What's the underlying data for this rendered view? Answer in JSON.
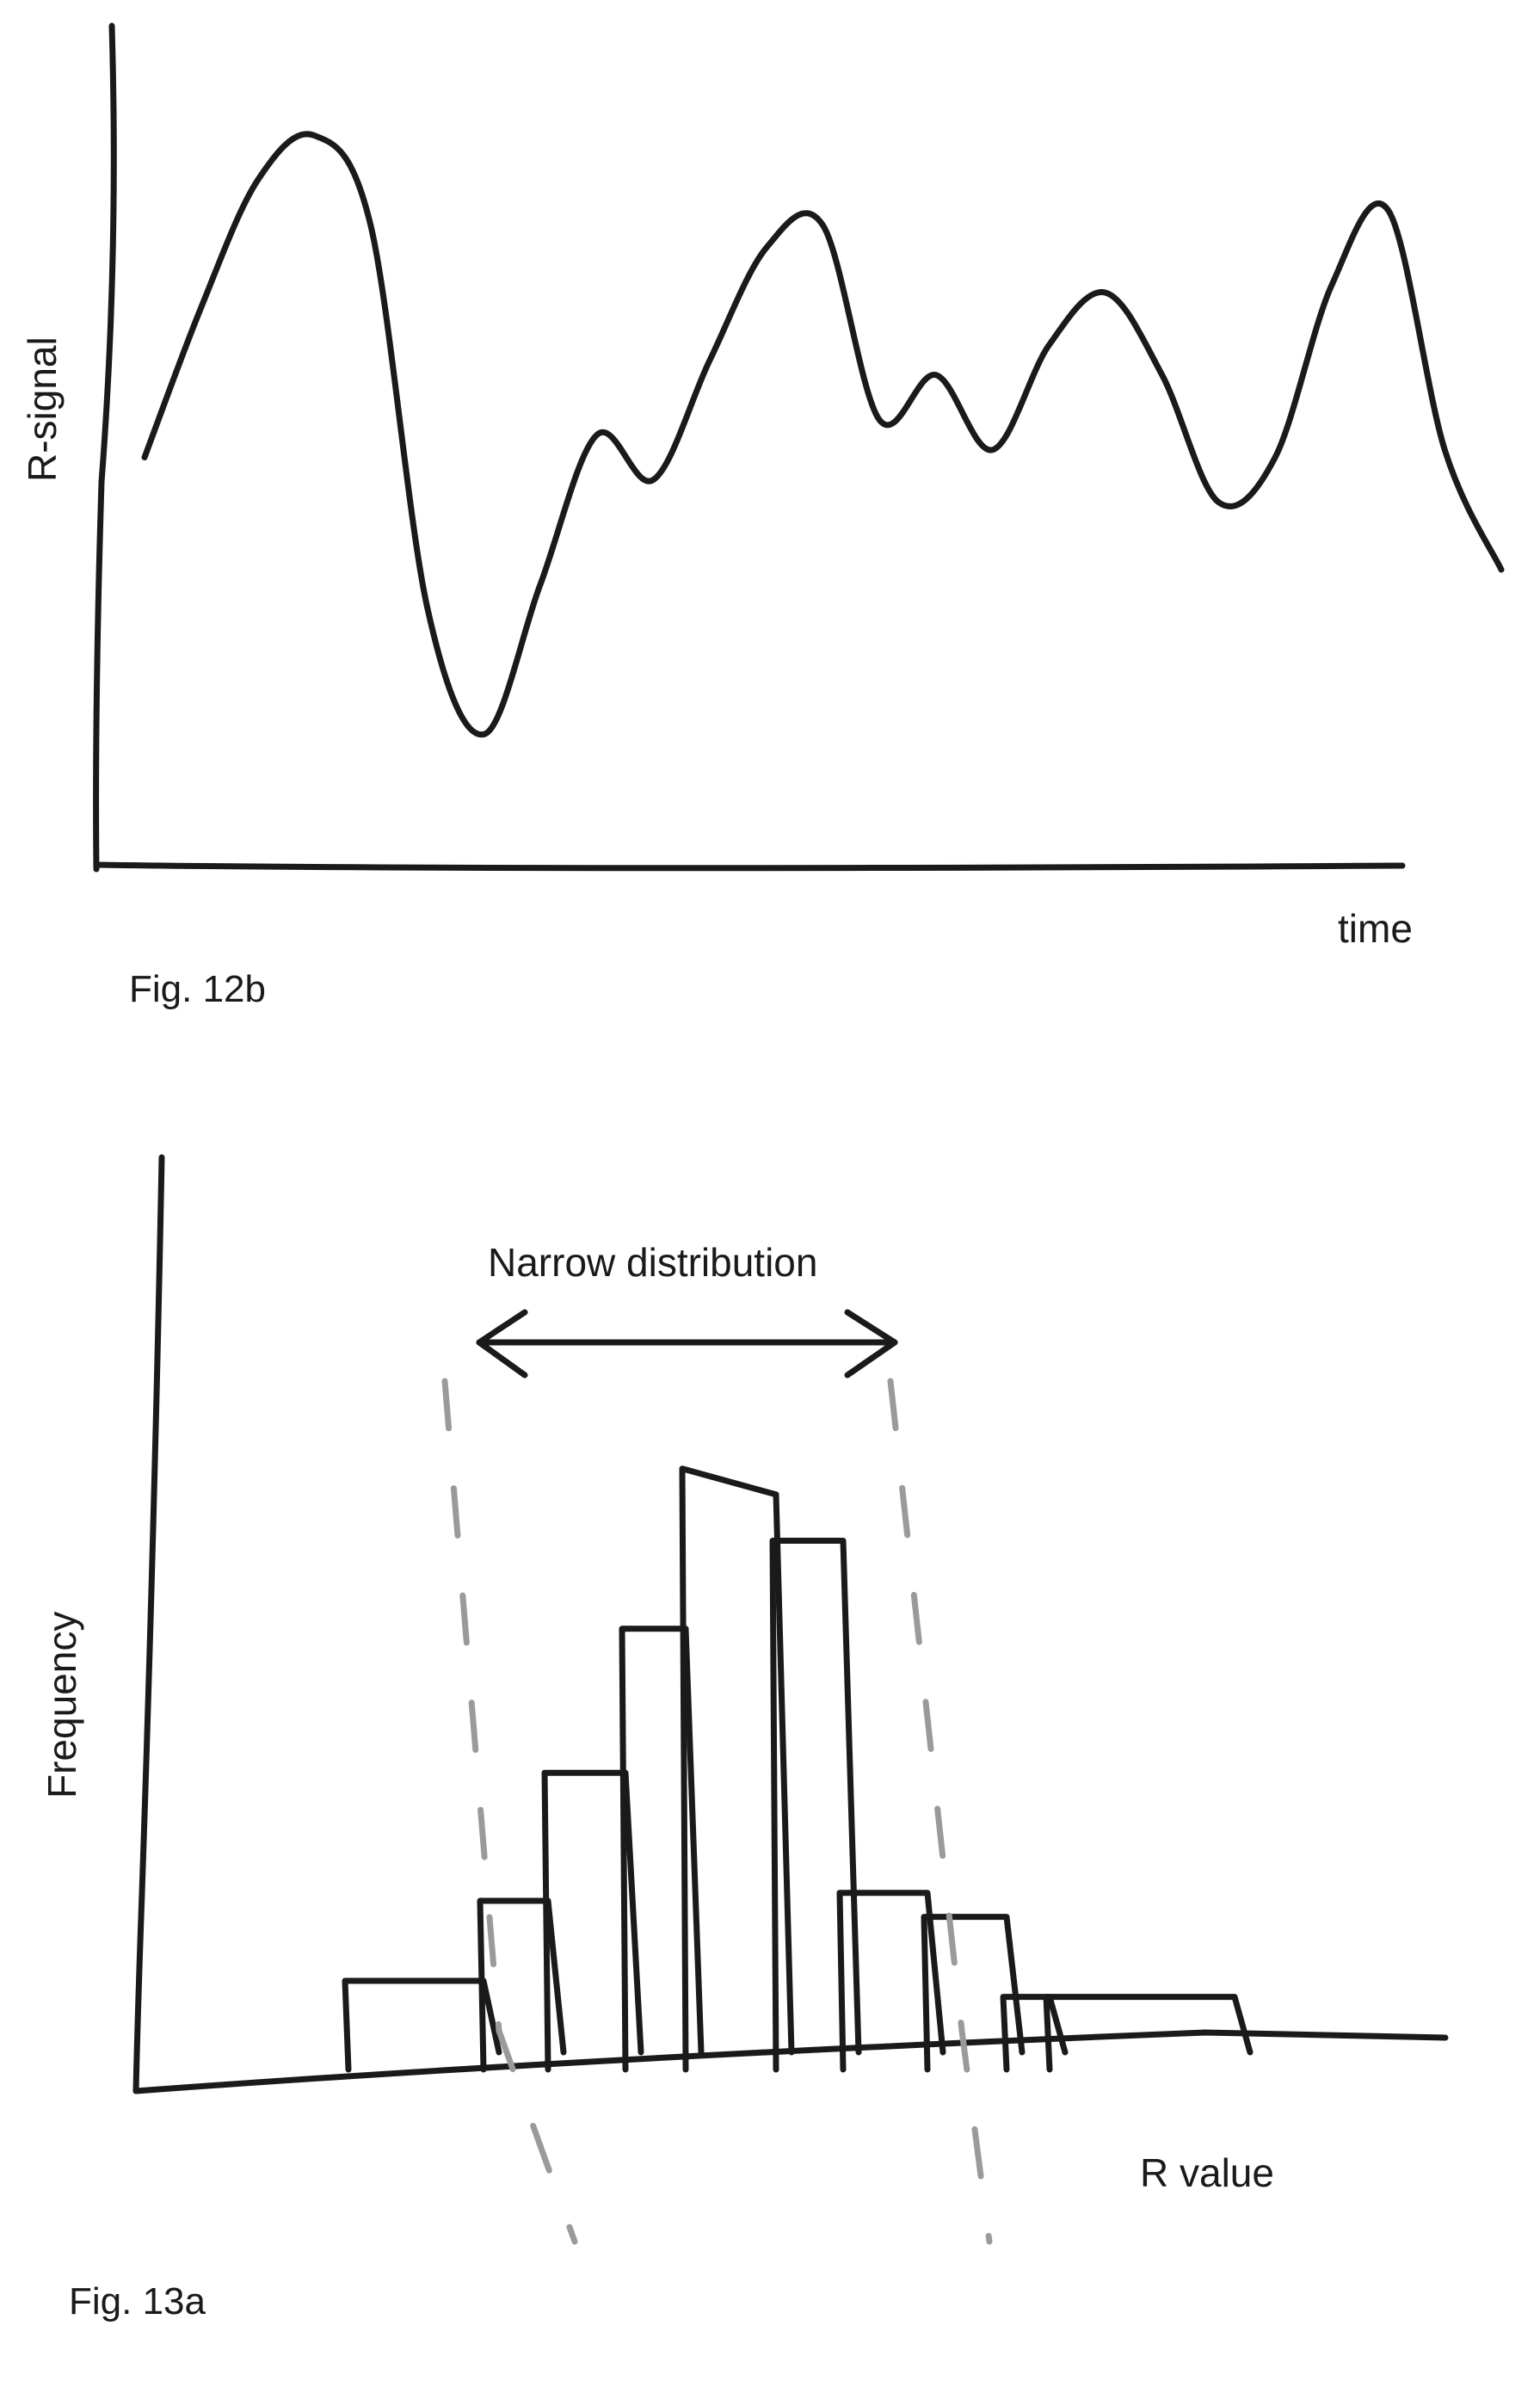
{
  "figures": [
    {
      "caption": "Fig. 12b",
      "chart_data": {
        "type": "line",
        "xlabel": "time",
        "ylabel": "R-signal",
        "x": [
          0,
          1,
          2,
          3,
          4,
          5,
          6,
          7,
          8,
          9,
          10,
          11,
          12,
          13,
          14,
          15,
          16,
          17,
          18,
          19,
          20,
          21,
          22,
          23,
          24
        ],
        "series": [
          {
            "values": [
              0.55,
              0.75,
              0.92,
              0.98,
              0.86,
              0.35,
              0.18,
              0.38,
              0.58,
              0.52,
              0.68,
              0.83,
              0.86,
              0.6,
              0.66,
              0.56,
              0.7,
              0.77,
              0.66,
              0.49,
              0.55,
              0.78,
              0.88,
              0.56,
              0.4
            ]
          }
        ],
        "grid": false,
        "legend": "none"
      }
    },
    {
      "caption": "Fig. 13a",
      "chart_data": {
        "type": "bar",
        "xlabel": "R value",
        "ylabel": "Frequency",
        "annotation": "Narrow distribution",
        "categories": [
          "",
          "",
          "",
          "",
          "",
          "",
          "",
          "",
          "",
          ""
        ],
        "values": [
          1.0,
          2.0,
          3.6,
          5.4,
          7.4,
          6.5,
          2.1,
          1.8,
          0.8,
          0.8
        ],
        "grid": false,
        "legend": "none"
      }
    }
  ]
}
